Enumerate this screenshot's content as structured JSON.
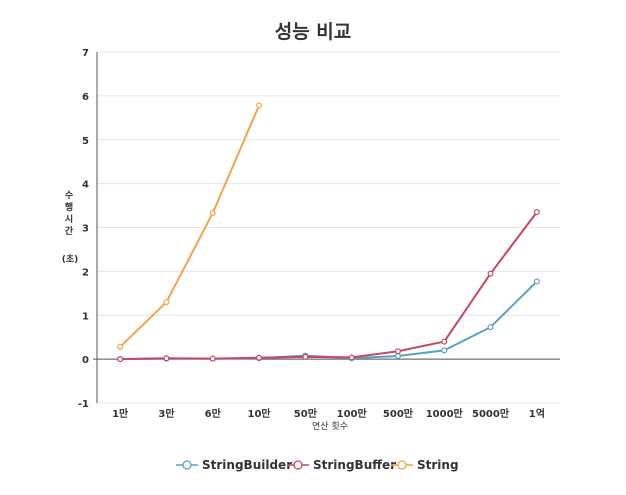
{
  "chart_data": {
    "type": "line",
    "title": "성능 비교",
    "xlabel": "연산 횟수",
    "ylabel_chars": [
      "수",
      "행",
      "시",
      "간"
    ],
    "ylabel_unit": "(초)",
    "categories": [
      "1만",
      "3만",
      "6만",
      "10만",
      "50만",
      "100만",
      "500만",
      "1000만",
      "5000만",
      "1억"
    ],
    "ylim": [
      -1,
      7
    ],
    "yticks": [
      "-1",
      "0",
      "1",
      "2",
      "3",
      "4",
      "5",
      "6",
      "7"
    ],
    "grid": true,
    "legend_position": "bottom",
    "series": [
      {
        "name": "StringBuilder",
        "color": "#5b9fc6",
        "values": [
          0,
          0.01,
          0.01,
          0.02,
          0.08,
          0.02,
          0.07,
          0.2,
          0.73,
          1.77
        ]
      },
      {
        "name": "StringBuffer",
        "color": "#c8465e",
        "values": [
          0,
          0.02,
          0.01,
          0.03,
          0.05,
          0.04,
          0.18,
          0.4,
          1.95,
          3.35
        ]
      },
      {
        "name": "String",
        "color": "#f4a24b",
        "values": [
          0.28,
          1.3,
          3.33,
          5.78,
          null,
          null,
          null,
          null,
          null,
          null
        ]
      }
    ]
  }
}
